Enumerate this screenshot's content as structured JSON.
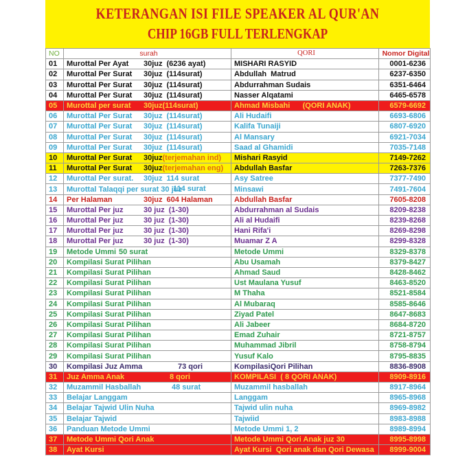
{
  "title": "KETERANGAN ISI FILE SPEAKER AL QUR'AN",
  "subtitle": "CHIP 16GB FULL TERLENGKAP",
  "headers": {
    "no": "NO",
    "surah": "surah",
    "qori": "QORI",
    "nomor": "Nomor Digital"
  },
  "colors": {
    "banner": "#fff200",
    "title": "#c8231e",
    "highlight_red": "#ee1c1c"
  },
  "rows": [
    {
      "no": "01",
      "surah": "Murottal Per Ayat",
      "mid": "30juz",
      "detail": "(6236 ayat)",
      "qori": "MISHARI RASYID",
      "nomor": "0001-6236",
      "style": "black"
    },
    {
      "no": "02",
      "surah": "Murottal Per Surat",
      "mid": "30juz",
      "detail": "(114surat)",
      "qori": "Abdullah  Matrud",
      "nomor": "6237-6350",
      "style": "black"
    },
    {
      "no": "03",
      "surah": "Murottal Per Surat",
      "mid": "30juz",
      "detail": "(114surat)",
      "qori": "Abdurrahman Sudais",
      "nomor": "6351-6464",
      "style": "black"
    },
    {
      "no": "04",
      "surah": "Murottal Per Surat",
      "mid": "30juz",
      "detail": "(114surat)",
      "qori": "Nasser Alqatami",
      "nomor": "6465-6578",
      "style": "black"
    },
    {
      "no": "05",
      "surah": "Murottal per surat",
      "mid": "30juz(114surat)",
      "detail": "",
      "qori": "Ahmad Misbahi      (QORI ANAK)",
      "nomor": "6579-6692",
      "style": "redbg"
    },
    {
      "no": "06",
      "surah": "Murottal Per Surat",
      "mid": "30juz",
      "detail": "(114surat)",
      "qori": "Ali Hudaifi",
      "nomor": "6693-6806",
      "style": "cyan"
    },
    {
      "no": "07",
      "surah": "Murottal Per Surat",
      "mid": "30juz",
      "detail": "(114surat)",
      "qori": "Kalifa Tunaiji",
      "nomor": "6807-6920",
      "style": "cyan"
    },
    {
      "no": "08",
      "surah": "Murottal Per Surat",
      "mid": "30juz",
      "detail": "(114surat)",
      "qori": "Al Mansary",
      "nomor": "6921-7034",
      "style": "cyan"
    },
    {
      "no": "09",
      "surah": "Murottal Per Surat",
      "mid": "30juz",
      "detail": "(114surat)",
      "qori": "Saad al Ghamidi",
      "nomor": "7035-7148",
      "style": "cyan"
    },
    {
      "no": "10",
      "surah": "Murottal Per Surat",
      "mid": "30juz",
      "detail": "(terjemahan ind)",
      "qori": "Mishari Rasyid",
      "nomor": "7149-7262",
      "style": "yellowbg"
    },
    {
      "no": "11",
      "surah": "Murottal Per Surat",
      "mid": "30juz",
      "detail": "(terjemahan eng)",
      "qori": "Abdullah Basfar",
      "nomor": "7263-7376",
      "style": "yellowbg"
    },
    {
      "no": "12",
      "surah": "Murottal Per surat.",
      "mid": "30juz",
      "detail": "114 surat",
      "qori": "Asy Satree",
      "nomor": "7377-7490",
      "style": "cyan"
    },
    {
      "no": "13",
      "surah": "Murottal Talaqqi  per surat 30 juz",
      "mid": "",
      "detail": "114 surat",
      "qori": "Minsawi",
      "nomor": "7491-7604",
      "style": "cyan"
    },
    {
      "no": "14",
      "surah": "Per Halaman",
      "mid": "30juz",
      "detail": "604 Halaman",
      "qori": "Abdullah Basfar",
      "nomor": "7605-8208",
      "style": "redtext"
    },
    {
      "no": "15",
      "surah": "Murottal Per juz",
      "mid": "30  juz",
      "detail": "(1-30)",
      "qori": "Abdurrahman al Sudais",
      "nomor": "8209-8238",
      "style": "purple"
    },
    {
      "no": "16",
      "surah": "Murottal Per juz",
      "mid": "30  juz",
      "detail": "(1-30)",
      "qori": "Ali al Hudaifi",
      "nomor": "8239-8268",
      "style": "purple"
    },
    {
      "no": "17",
      "surah": "Murottal Per juz",
      "mid": "30  juz",
      "detail": "(1-30)",
      "qori": "Hani Rifa'i",
      "nomor": "8269-8298",
      "style": "purple"
    },
    {
      "no": "18",
      "surah": "Murottal Per juz",
      "mid": "30  juz",
      "detail": "(1-30)",
      "qori": "Muamar Z A",
      "nomor": "8299-8328",
      "style": "purple"
    },
    {
      "no": "19",
      "surah": "Metode Ummi",
      "mid": "50 surat",
      "detail": "",
      "qori": "Metode Ummi",
      "nomor": "8329-8378",
      "style": "green"
    },
    {
      "no": "20",
      "surah": "Kompilasi Surat Pilihan",
      "mid": "",
      "detail": "",
      "qori": "Abu Usamah",
      "nomor": "8379-8427",
      "style": "green"
    },
    {
      "no": "21",
      "surah": "Kompilasi Surat Pilihan",
      "mid": "",
      "detail": "",
      "qori": "Ahmad Saud",
      "nomor": "8428-8462",
      "style": "green"
    },
    {
      "no": "22",
      "surah": "Kompilasi Surat Pilihan",
      "mid": "",
      "detail": "",
      "qori": "Ust Maulana Yusuf",
      "nomor": "8463-8520",
      "style": "green"
    },
    {
      "no": "23",
      "surah": "Kompilasi Surat Pilihan",
      "mid": "",
      "detail": "",
      "qori": "M Thaha",
      "nomor": "8521-8584",
      "style": "green"
    },
    {
      "no": "24",
      "surah": "Kompilasi Surat Pilihan",
      "mid": "",
      "detail": "",
      "qori": "Al Mubaraq",
      "nomor": "8585-8646",
      "style": "green"
    },
    {
      "no": "25",
      "surah": "Kompilasi Surat Pilihan",
      "mid": "",
      "detail": "",
      "qori": "Ziyad Patel",
      "nomor": "8647-8683",
      "style": "green"
    },
    {
      "no": "26",
      "surah": "Kompilasi Surat Pilihan",
      "mid": "",
      "detail": "",
      "qori": "Ali Jabeer",
      "nomor": "8684-8720",
      "style": "green"
    },
    {
      "no": "27",
      "surah": "Kompilasi Surat Pilihan",
      "mid": "",
      "detail": "",
      "qori": "Emad Zuhair",
      "nomor": "8721-8757",
      "style": "green"
    },
    {
      "no": "28",
      "surah": "Kompilasi Surat Pilihan",
      "mid": "",
      "detail": "",
      "qori": "Muhammad Jibril",
      "nomor": "8758-8794",
      "style": "green"
    },
    {
      "no": "29",
      "surah": "Kompilasi Surat Pilihan",
      "mid": "",
      "detail": "",
      "qori": "Yusuf Kalo",
      "nomor": "8795-8835",
      "style": "green"
    },
    {
      "no": "30",
      "surah": "Kompilasi Juz Amma",
      "mid": "73 qori",
      "detail": "",
      "qori": "KompilasiQori Pilihan",
      "nomor": "8836-8908",
      "style": "darkpurple"
    },
    {
      "no": "31",
      "surah": "Juz Amma Anak",
      "mid": "8  qori",
      "detail": "",
      "qori": "KOMPILASI  ( 8 QORI ANAK)",
      "nomor": "8909-8916",
      "style": "redbg"
    },
    {
      "no": "32",
      "surah": "Muzammil Hasballah",
      "mid": "48 surat",
      "detail": "",
      "qori": "Muzammil hasballah",
      "nomor": "8917-8964",
      "style": "cyan"
    },
    {
      "no": "33",
      "surah": "Belajar Langgam",
      "mid": "",
      "detail": "",
      "qori": "Langgam",
      "nomor": "8965-8968",
      "style": "cyan"
    },
    {
      "no": "34",
      "surah": "Belajar Tajwid Ulin Nuha",
      "mid": "",
      "detail": "",
      "qori": "Tajwid ulin nuha",
      "nomor": "8969-8982",
      "style": "cyan"
    },
    {
      "no": "35",
      "surah": "Belajar Tajwid",
      "mid": "",
      "detail": "",
      "qori": "Tajwiid",
      "nomor": "8983-8988",
      "style": "cyan"
    },
    {
      "no": "36",
      "surah": "Panduan Metode Ummi",
      "mid": "",
      "detail": "",
      "qori": "Metode Ummi 1, 2",
      "nomor": "8989-8994",
      "style": "cyan"
    },
    {
      "no": "37",
      "surah": "Metode Ummi    Qori Anak",
      "mid": "",
      "detail": "",
      "qori": "Metode Ummi Qori Anak juz 30",
      "nomor": "8995-8998",
      "style": "redbg"
    },
    {
      "no": "38",
      "surah": "Ayat Kursi",
      "mid": "",
      "detail": "",
      "qori": "Ayat Kursi  Qori anak dan Qori Dewasa",
      "nomor": "8999-9004",
      "style": "redbg"
    }
  ]
}
